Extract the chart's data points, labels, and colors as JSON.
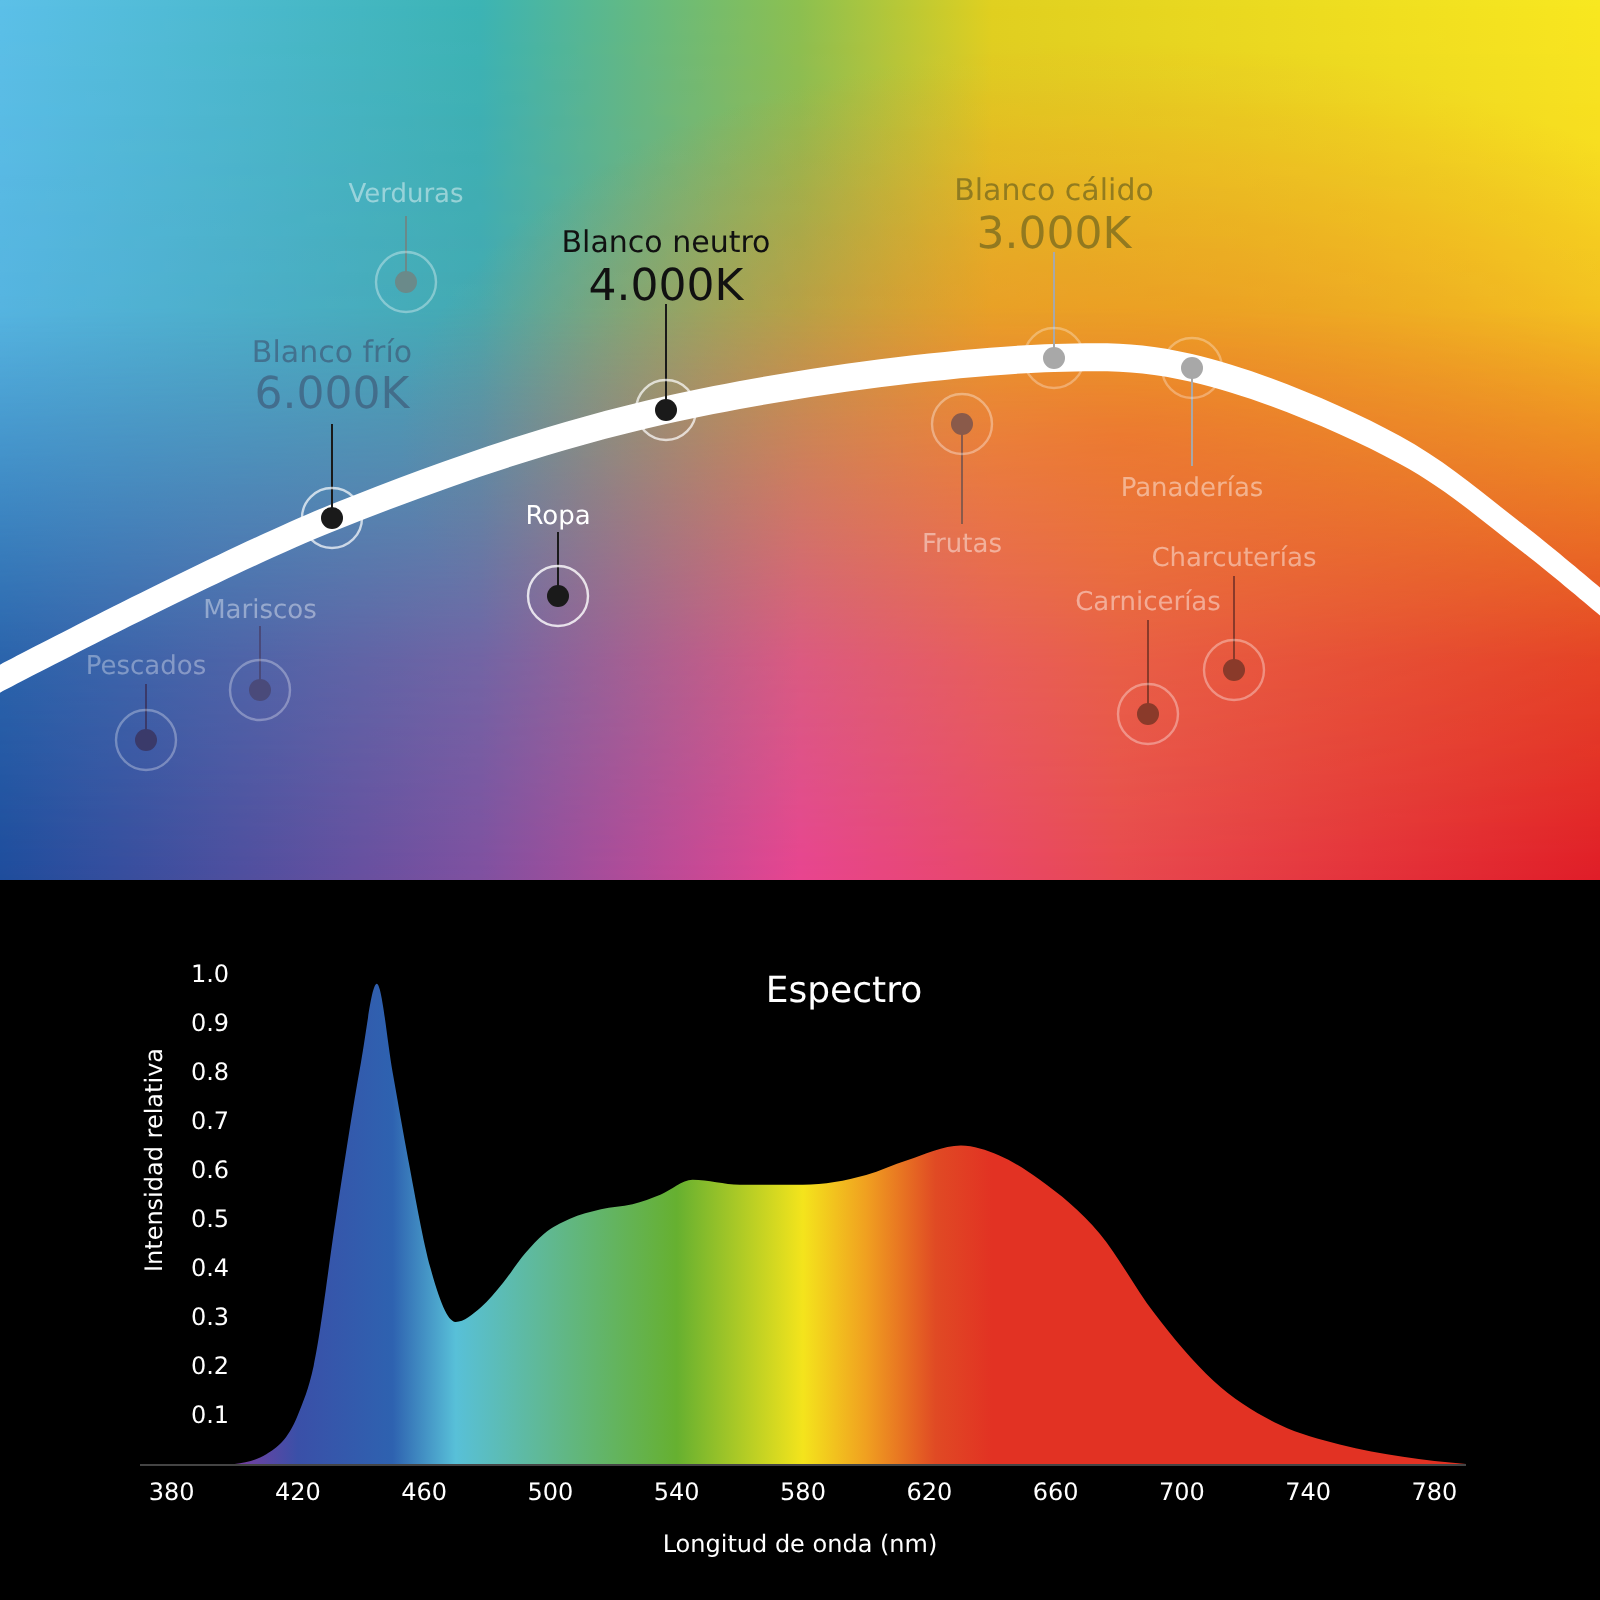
{
  "chart_data": [
    {
      "type": "other",
      "annotations": [
        "Verduras",
        "Blanco frío",
        "6.000K",
        "Blanco neutro",
        "4.000K",
        "Blanco cálido",
        "3.000K",
        "Ropa",
        "Mariscos",
        "Pescados",
        "Frutas",
        "Panaderías",
        "Charcuterías",
        "Carnicerías"
      ]
    },
    {
      "type": "area",
      "title": "Espectro",
      "xlabel": "Longitud de onda (nm)",
      "ylabel": "Intensidad relativa",
      "x": [
        400,
        410,
        420,
        425,
        432,
        440,
        445,
        450,
        455,
        462,
        470,
        478,
        485,
        492,
        498,
        506,
        516,
        526,
        535,
        545,
        560,
        580,
        600,
        613,
        630,
        642,
        655,
        674,
        691,
        710,
        731,
        750,
        770,
        790
      ],
      "series": [
        {
          "color": "#e23223",
          "values": [
            0,
            0.02,
            0.1,
            0.2,
            0.5,
            0.82,
            0.98,
            0.8,
            0.62,
            0.4,
            0.29,
            0.32,
            0.37,
            0.43,
            0.47,
            0.5,
            0.52,
            0.53,
            0.55,
            0.58,
            0.57,
            0.57,
            0.59,
            0.62,
            0.65,
            0.63,
            0.58,
            0.47,
            0.31,
            0.17,
            0.08,
            0.04,
            0.015,
            0
          ]
        }
      ],
      "xlim": [
        370,
        790
      ],
      "ylim": [
        0,
        1.0
      ],
      "xticks": [
        380,
        420,
        460,
        500,
        540,
        580,
        620,
        660,
        700,
        740,
        780
      ],
      "yticks": [
        0.1,
        0.2,
        0.3,
        0.4,
        0.5,
        0.6,
        0.7,
        0.8,
        0.9,
        {
          "value": 1.0,
          "label": "1.0"
        }
      ],
      "grid": false
    }
  ]
}
